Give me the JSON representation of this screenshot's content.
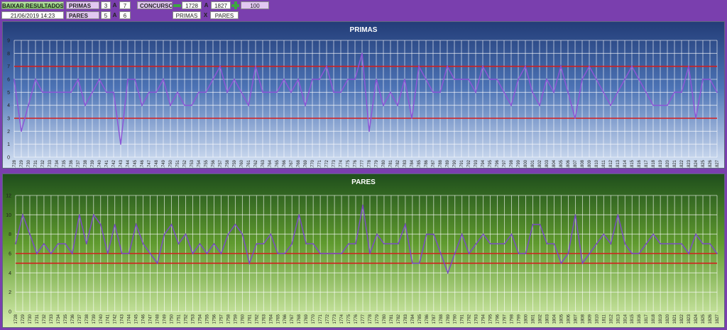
{
  "toolbar": {
    "download_label": "BAIXAR RESULTADOS",
    "datetime": "21/06/2019 14:23",
    "primas_label": "PRIMAS",
    "primas_min": "3",
    "primas_sep": "A",
    "primas_max": "7",
    "pares_label": "PARES",
    "pares_min": "5",
    "pares_sep": "A",
    "pares_max": "6",
    "concursos_label": "CONCURSOS",
    "concurso_from": "1728",
    "concurso_sep": "A",
    "concurso_to": "1827",
    "concurso_count": "100",
    "compare_a": "PRIMAS",
    "compare_sep": "X",
    "compare_b": "PARES",
    "minus_icon": "minus-icon",
    "plus_icon": "plus-icon"
  },
  "chart_data": [
    {
      "type": "line",
      "title": "PRIMAS",
      "x_start": 1728,
      "x_end": 1827,
      "ylim": [
        0,
        9
      ],
      "y_ticks": [
        0,
        1,
        2,
        3,
        4,
        5,
        6,
        7,
        8,
        9
      ],
      "grid": true,
      "line_color": "#8e55d6",
      "reference_lines": [
        3,
        7
      ],
      "reference_color": "#d21e1e",
      "values": [
        6,
        2,
        4,
        6,
        5,
        5,
        5,
        5,
        5,
        6,
        4,
        5,
        6,
        5,
        5,
        1,
        6,
        6,
        4,
        5,
        5,
        6,
        4,
        5,
        4,
        4,
        5,
        5,
        6,
        7,
        5,
        6,
        5,
        4,
        7,
        5,
        5,
        5,
        6,
        5,
        6,
        4,
        6,
        6,
        7,
        5,
        5,
        6,
        6,
        8,
        2,
        6,
        4,
        5,
        4,
        6,
        3,
        7,
        6,
        5,
        5,
        7,
        6,
        6,
        6,
        5,
        7,
        6,
        6,
        5,
        4,
        6,
        7,
        5,
        4,
        6,
        5,
        7,
        5,
        3,
        6,
        7,
        6,
        5,
        4,
        5,
        6,
        7,
        6,
        5,
        4,
        4,
        4,
        5,
        5,
        7,
        3,
        6,
        6,
        5
      ]
    },
    {
      "type": "line",
      "title": "PARES",
      "x_start": 1728,
      "x_end": 1827,
      "ylim": [
        0,
        12
      ],
      "y_ticks": [
        0,
        2,
        4,
        6,
        8,
        10,
        12
      ],
      "grid": true,
      "line_color": "#7a4cc6",
      "reference_lines": [
        5,
        6
      ],
      "reference_color": "#d21e1e",
      "values": [
        7,
        10,
        8,
        6,
        7,
        6,
        7,
        7,
        6,
        10,
        7,
        10,
        9,
        6,
        9,
        6,
        6,
        9,
        7,
        6,
        5,
        8,
        9,
        7,
        8,
        6,
        7,
        6,
        7,
        6,
        8,
        9,
        8,
        5,
        7,
        7,
        8,
        6,
        6,
        7,
        10,
        7,
        7,
        6,
        6,
        6,
        6,
        7,
        7,
        11,
        6,
        8,
        7,
        7,
        7,
        9,
        5,
        5,
        8,
        8,
        6,
        4,
        6,
        8,
        6,
        7,
        8,
        7,
        7,
        7,
        8,
        6,
        6,
        9,
        9,
        7,
        7,
        5,
        6,
        10,
        5,
        6,
        7,
        8,
        7,
        10,
        7,
        6,
        6,
        7,
        8,
        7,
        7,
        7,
        7,
        6,
        8,
        7,
        7,
        6
      ]
    }
  ]
}
